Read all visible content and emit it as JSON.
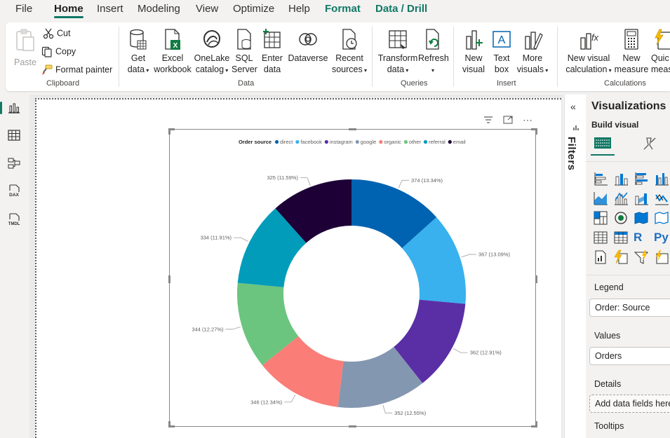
{
  "menu": {
    "file": "File",
    "home": "Home",
    "insert": "Insert",
    "modeling": "Modeling",
    "view": "View",
    "optimize": "Optimize",
    "help": "Help",
    "format": "Format",
    "data_drill": "Data / Drill"
  },
  "ribbon": {
    "clipboard": {
      "paste": "Paste",
      "cut": "Cut",
      "copy": "Copy",
      "format_painter": "Format painter",
      "label": "Clipboard"
    },
    "data": {
      "get_data": [
        "Get",
        "data"
      ],
      "excel_workbook": [
        "Excel",
        "workbook"
      ],
      "onelake_catalog": [
        "OneLake",
        "catalog"
      ],
      "sql_server": [
        "SQL",
        "Server"
      ],
      "enter_data": [
        "Enter",
        "data"
      ],
      "dataverse": "Dataverse",
      "recent_sources": [
        "Recent",
        "sources"
      ],
      "label": "Data"
    },
    "queries": {
      "transform_data": [
        "Transform",
        "data"
      ],
      "refresh": "Refresh",
      "label": "Queries"
    },
    "insert": {
      "new_visual": [
        "New",
        "visual"
      ],
      "text_box": [
        "Text",
        "box"
      ],
      "more_visuals": [
        "More",
        "visuals"
      ],
      "label": "Insert"
    },
    "calculations": {
      "new_visual_calculation": [
        "New visual",
        "calculation"
      ],
      "new_measure": [
        "New",
        "measure"
      ],
      "quick_measure": [
        "Quic",
        "meas"
      ],
      "label": "Calculations"
    }
  },
  "filters_label": "Filters",
  "visualizations": {
    "title": "Visualizations",
    "build_visual": "Build visual",
    "legend_label": "Legend",
    "legend_value": "Order: Source",
    "values_label": "Values",
    "values_value": "Orders",
    "details_label": "Details",
    "details_placeholder": "Add data fields here",
    "tooltips_label": "Tooltips",
    "r_icon": "R",
    "py_icon": "Py"
  },
  "chart_data": {
    "type": "pie",
    "legend_title": "Order source",
    "legend_position": "top-center",
    "categories": [
      "direct",
      "facebook",
      "instagram",
      "google",
      "organic",
      "other",
      "referral",
      "email"
    ],
    "values": [
      374,
      367,
      362,
      352,
      346,
      344,
      334,
      325
    ],
    "data_labels": [
      "374 (13.34%)",
      "367 (13.09%)",
      "362 (12.91%)",
      "352 (12.55%)",
      "346 (12.34%)",
      "344 (12.27%)",
      "334 (11.91%)",
      "325 (11.59%)"
    ],
    "colors": [
      "#0063b1",
      "#38b1ee",
      "#5a2fa5",
      "#8497b0",
      "#fa7d78",
      "#6cc57e",
      "#029cbb",
      "#1d0036"
    ]
  }
}
